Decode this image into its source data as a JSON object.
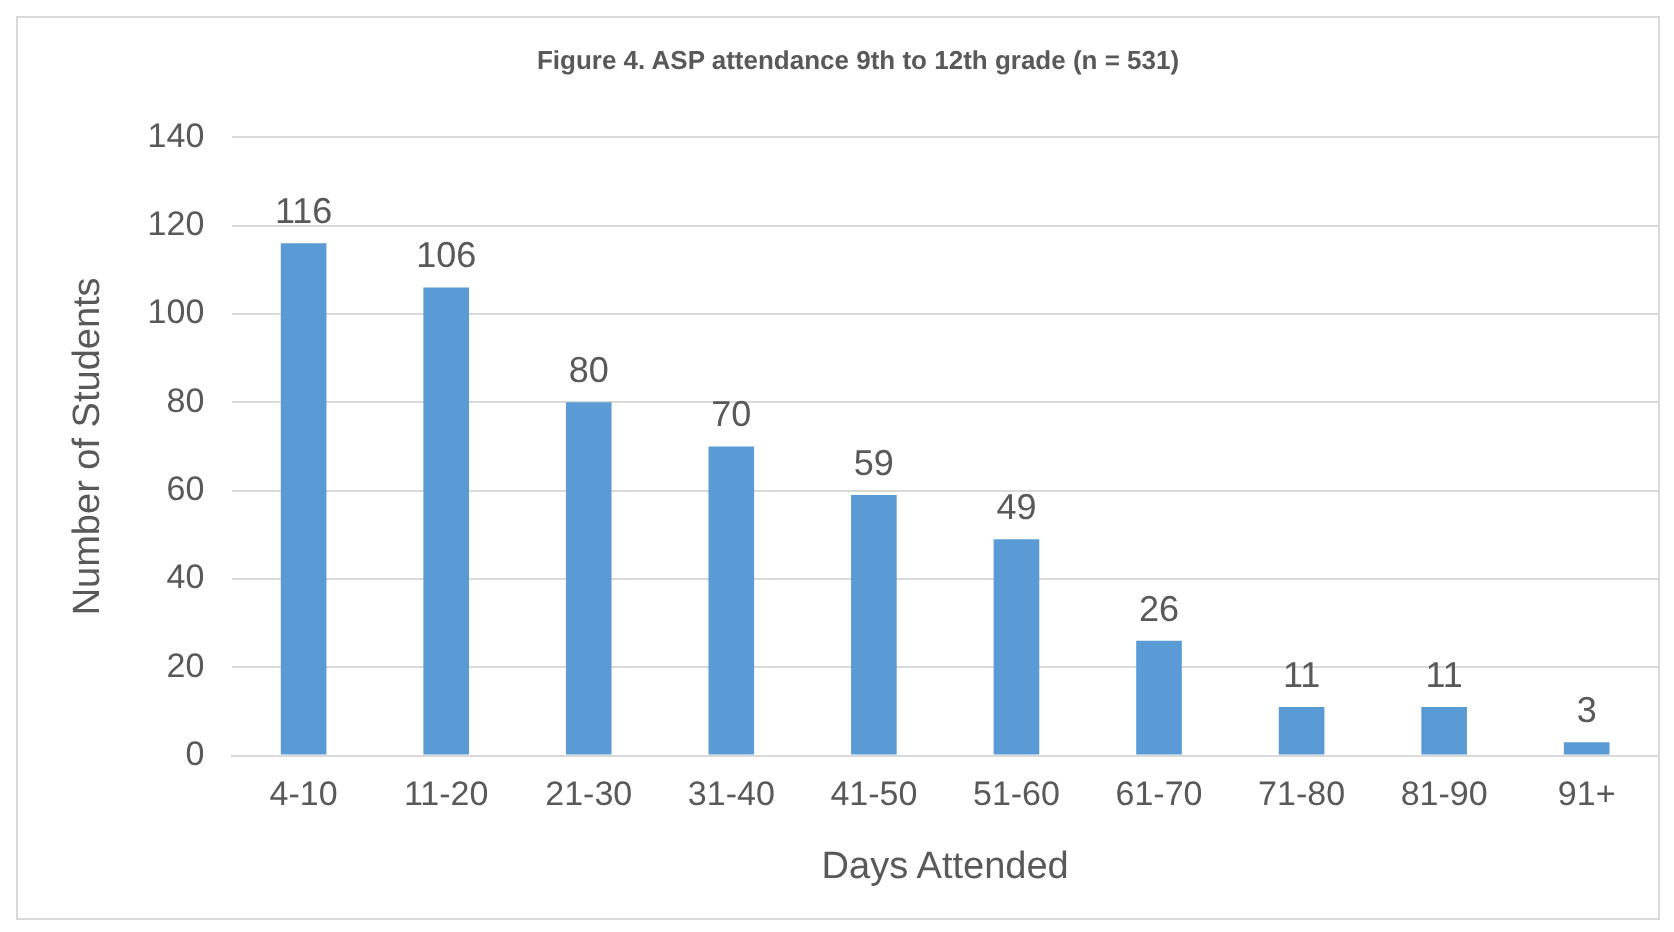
{
  "chart_data": {
    "type": "bar",
    "title": "Figure 4. ASP attendance 9th to 12th grade (n = 531)",
    "xlabel": "Days Attended",
    "ylabel": "Number of Students",
    "categories": [
      "4-10",
      "11-20",
      "21-30",
      "31-40",
      "41-50",
      "51-60",
      "61-70",
      "71-80",
      "81-90",
      "91+"
    ],
    "values": [
      116,
      106,
      80,
      70,
      59,
      49,
      26,
      11,
      11,
      3
    ],
    "color": "#5b9bd5",
    "ylim": [
      0,
      140
    ],
    "yticks": [
      0,
      20,
      40,
      60,
      80,
      100,
      120,
      140
    ],
    "grid": "y",
    "data_labels": true,
    "legend": false
  }
}
